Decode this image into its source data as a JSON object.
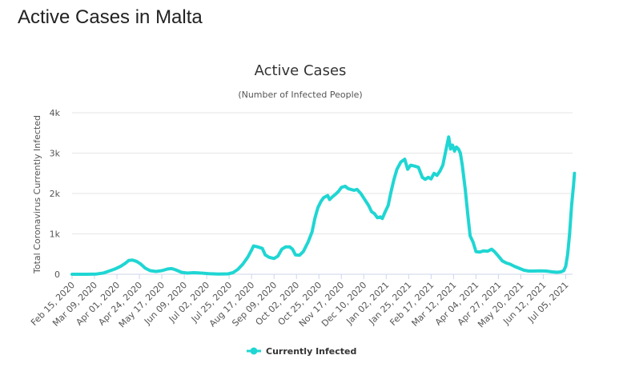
{
  "page": {
    "heading": "Active Cases in Malta"
  },
  "colors": {
    "series": "#1fd6d3",
    "grid": "#e6e6e6",
    "axis": "#ccd6eb"
  },
  "chart_data": {
    "type": "line",
    "title": "Active Cases",
    "subtitle": "(Number of Infected People)",
    "ylabel": "Total Coronavirus Currently Infected",
    "xlabel": "",
    "ylim": [
      0,
      4000
    ],
    "y_ticks": [
      {
        "value": 0,
        "label": "0"
      },
      {
        "value": 1000,
        "label": "1k"
      },
      {
        "value": 2000,
        "label": "2k"
      },
      {
        "value": 3000,
        "label": "3k"
      },
      {
        "value": 4000,
        "label": "4k"
      }
    ],
    "x_range_days": [
      0,
      513
    ],
    "x_ticks": [
      {
        "day": 0,
        "label": "Feb 15, 2020"
      },
      {
        "day": 23,
        "label": "Mar 09, 2020"
      },
      {
        "day": 46,
        "label": "Apr 01, 2020"
      },
      {
        "day": 69,
        "label": "Apr 24, 2020"
      },
      {
        "day": 92,
        "label": "May 17, 2020"
      },
      {
        "day": 115,
        "label": "Jun 09, 2020"
      },
      {
        "day": 138,
        "label": "Jul 02, 2020"
      },
      {
        "day": 161,
        "label": "Jul 25, 2020"
      },
      {
        "day": 184,
        "label": "Aug 17, 2020"
      },
      {
        "day": 207,
        "label": "Sep 09, 2020"
      },
      {
        "day": 230,
        "label": "Oct 02, 2020"
      },
      {
        "day": 253,
        "label": "Oct 25, 2020"
      },
      {
        "day": 276,
        "label": "Nov 17, 2020"
      },
      {
        "day": 299,
        "label": "Dec 10, 2020"
      },
      {
        "day": 322,
        "label": "Jan 02, 2021"
      },
      {
        "day": 345,
        "label": "Jan 25, 2021"
      },
      {
        "day": 368,
        "label": "Feb 17, 2021"
      },
      {
        "day": 391,
        "label": "Mar 12, 2021"
      },
      {
        "day": 414,
        "label": "Apr 04, 2021"
      },
      {
        "day": 437,
        "label": "Apr 27, 2021"
      },
      {
        "day": 460,
        "label": "May 20, 2021"
      },
      {
        "day": 483,
        "label": "Jun 12, 2021"
      },
      {
        "day": 506,
        "label": "Jul 05, 2021"
      }
    ],
    "legend": {
      "position": "bottom-center"
    },
    "series": [
      {
        "name": "Currently Infected",
        "points": [
          [
            0,
            0
          ],
          [
            15,
            0
          ],
          [
            25,
            5
          ],
          [
            32,
            30
          ],
          [
            38,
            80
          ],
          [
            44,
            130
          ],
          [
            50,
            200
          ],
          [
            55,
            280
          ],
          [
            58,
            340
          ],
          [
            62,
            350
          ],
          [
            66,
            320
          ],
          [
            70,
            260
          ],
          [
            75,
            150
          ],
          [
            80,
            90
          ],
          [
            86,
            70
          ],
          [
            92,
            90
          ],
          [
            98,
            130
          ],
          [
            102,
            140
          ],
          [
            106,
            110
          ],
          [
            112,
            50
          ],
          [
            118,
            30
          ],
          [
            125,
            40
          ],
          [
            132,
            30
          ],
          [
            140,
            15
          ],
          [
            150,
            5
          ],
          [
            160,
            10
          ],
          [
            165,
            40
          ],
          [
            170,
            120
          ],
          [
            175,
            250
          ],
          [
            180,
            420
          ],
          [
            184,
            600
          ],
          [
            186,
            700
          ],
          [
            190,
            680
          ],
          [
            195,
            640
          ],
          [
            198,
            480
          ],
          [
            202,
            420
          ],
          [
            207,
            390
          ],
          [
            211,
            450
          ],
          [
            215,
            620
          ],
          [
            219,
            680
          ],
          [
            223,
            680
          ],
          [
            226,
            620
          ],
          [
            229,
            480
          ],
          [
            233,
            470
          ],
          [
            237,
            560
          ],
          [
            242,
            800
          ],
          [
            246,
            1050
          ],
          [
            249,
            1400
          ],
          [
            252,
            1650
          ],
          [
            255,
            1800
          ],
          [
            258,
            1900
          ],
          [
            262,
            1950
          ],
          [
            264,
            1850
          ],
          [
            267,
            1920
          ],
          [
            270,
            1980
          ],
          [
            273,
            2050
          ],
          [
            276,
            2150
          ],
          [
            280,
            2180
          ],
          [
            283,
            2120
          ],
          [
            286,
            2100
          ],
          [
            289,
            2080
          ],
          [
            292,
            2100
          ],
          [
            296,
            2000
          ],
          [
            300,
            1850
          ],
          [
            304,
            1700
          ],
          [
            307,
            1550
          ],
          [
            310,
            1500
          ],
          [
            313,
            1400
          ],
          [
            316,
            1420
          ],
          [
            318,
            1380
          ],
          [
            321,
            1550
          ],
          [
            324,
            1700
          ],
          [
            327,
            2050
          ],
          [
            330,
            2350
          ],
          [
            333,
            2600
          ],
          [
            337,
            2780
          ],
          [
            341,
            2850
          ],
          [
            344,
            2600
          ],
          [
            347,
            2700
          ],
          [
            351,
            2680
          ],
          [
            355,
            2650
          ],
          [
            359,
            2400
          ],
          [
            362,
            2350
          ],
          [
            365,
            2400
          ],
          [
            368,
            2360
          ],
          [
            371,
            2500
          ],
          [
            374,
            2450
          ],
          [
            377,
            2550
          ],
          [
            380,
            2700
          ],
          [
            383,
            3050
          ],
          [
            386,
            3400
          ],
          [
            388,
            3100
          ],
          [
            390,
            3200
          ],
          [
            392,
            3050
          ],
          [
            394,
            3150
          ],
          [
            396,
            3100
          ],
          [
            398,
            3000
          ],
          [
            400,
            2700
          ],
          [
            403,
            2100
          ],
          [
            406,
            1400
          ],
          [
            408,
            950
          ],
          [
            411,
            800
          ],
          [
            414,
            560
          ],
          [
            418,
            550
          ],
          [
            422,
            580
          ],
          [
            426,
            570
          ],
          [
            430,
            620
          ],
          [
            433,
            560
          ],
          [
            437,
            450
          ],
          [
            441,
            330
          ],
          [
            445,
            280
          ],
          [
            449,
            250
          ],
          [
            453,
            200
          ],
          [
            458,
            150
          ],
          [
            463,
            100
          ],
          [
            468,
            80
          ],
          [
            473,
            80
          ],
          [
            480,
            85
          ],
          [
            486,
            80
          ],
          [
            492,
            60
          ],
          [
            497,
            50
          ],
          [
            501,
            60
          ],
          [
            504,
            90
          ],
          [
            506,
            200
          ],
          [
            508,
            500
          ],
          [
            510,
            1000
          ],
          [
            512,
            1700
          ],
          [
            514,
            2200
          ],
          [
            515,
            2500
          ]
        ]
      }
    ]
  }
}
